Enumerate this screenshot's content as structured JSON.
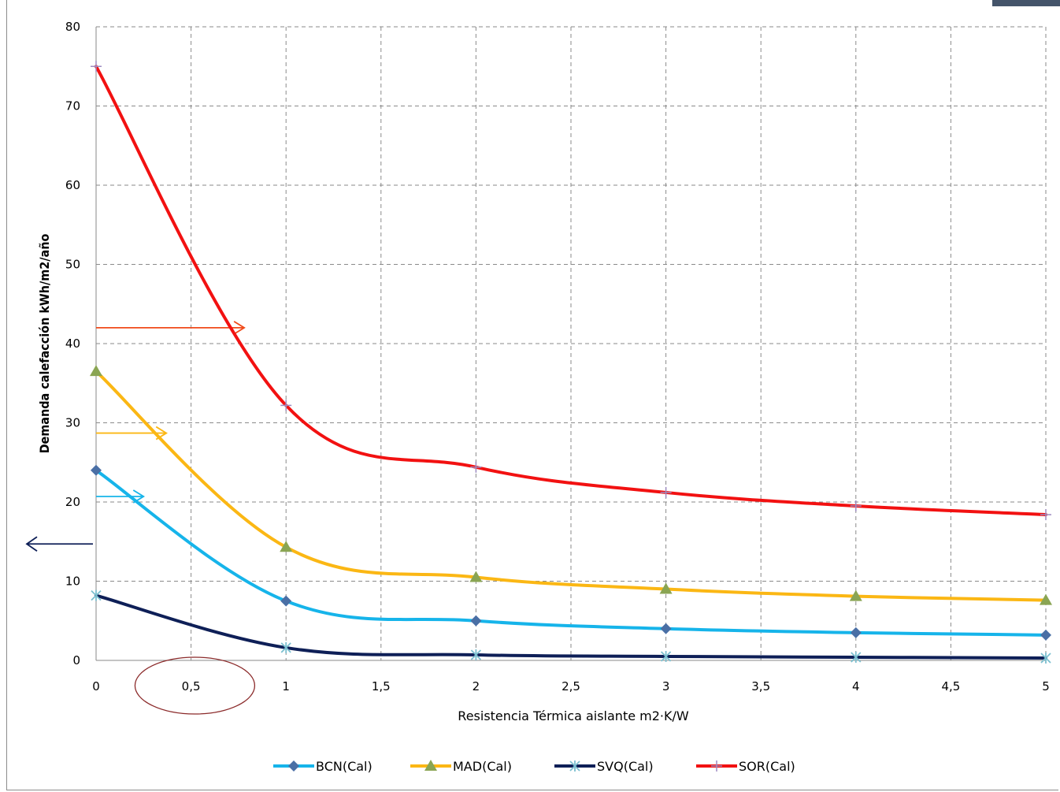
{
  "chart_data": {
    "type": "line",
    "xlabel": "Resistencia Térmica aislante  m2·K/W",
    "ylabel": "Demanda calefacción  kWh/m2/año",
    "xlim": [
      0,
      5
    ],
    "ylim": [
      0,
      80
    ],
    "x_ticks": [
      "0",
      "0,5",
      "1",
      "1,5",
      "2",
      "2,5",
      "3",
      "3,5",
      "4",
      "4,5",
      "5"
    ],
    "y_ticks": [
      "0",
      "10",
      "20",
      "30",
      "40",
      "50",
      "60",
      "70",
      "80"
    ],
    "grid": "dashed",
    "legend_position": "bottom",
    "x": [
      0,
      1,
      2,
      3,
      4,
      5
    ],
    "series": [
      {
        "name": "BCN(Cal)",
        "color": "#16b4ea",
        "marker": "diamond",
        "marker_color": "#4a6fa5",
        "values": [
          24.0,
          7.5,
          5.0,
          4.0,
          3.5,
          3.2
        ]
      },
      {
        "name": "MAD(Cal)",
        "color": "#fbb714",
        "marker": "triangle",
        "marker_color": "#8aa553",
        "values": [
          36.5,
          14.3,
          10.5,
          9.0,
          8.1,
          7.6
        ]
      },
      {
        "name": "SVQ(Cal)",
        "color": "#0e1f57",
        "marker": "star",
        "marker_color": "#7bbfcf",
        "values": [
          8.2,
          1.6,
          0.7,
          0.5,
          0.4,
          0.3
        ]
      },
      {
        "name": "SOR(Cal)",
        "color": "#f21111",
        "marker": "plus",
        "marker_color": "#9d8bc2",
        "values": [
          75.0,
          32.2,
          24.4,
          21.2,
          19.5,
          18.4
        ]
      }
    ],
    "annotations": [
      {
        "type": "arrow",
        "color": "#f04a1a",
        "from": [
          0,
          42
        ],
        "to": [
          0.78,
          42
        ]
      },
      {
        "type": "arrow",
        "color": "#fbb714",
        "from": [
          0,
          28.7
        ],
        "to": [
          0.37,
          28.7
        ]
      },
      {
        "type": "arrow",
        "color": "#16b4ea",
        "from": [
          0,
          20.7
        ],
        "to": [
          0.25,
          20.7
        ]
      },
      {
        "type": "arrow",
        "color": "#0e1f57",
        "direction": "left",
        "y": 14.7
      },
      {
        "type": "ellipse",
        "color": "#8b2a2a",
        "center_x": 0.52,
        "label_highlighted": "0,5"
      }
    ]
  }
}
